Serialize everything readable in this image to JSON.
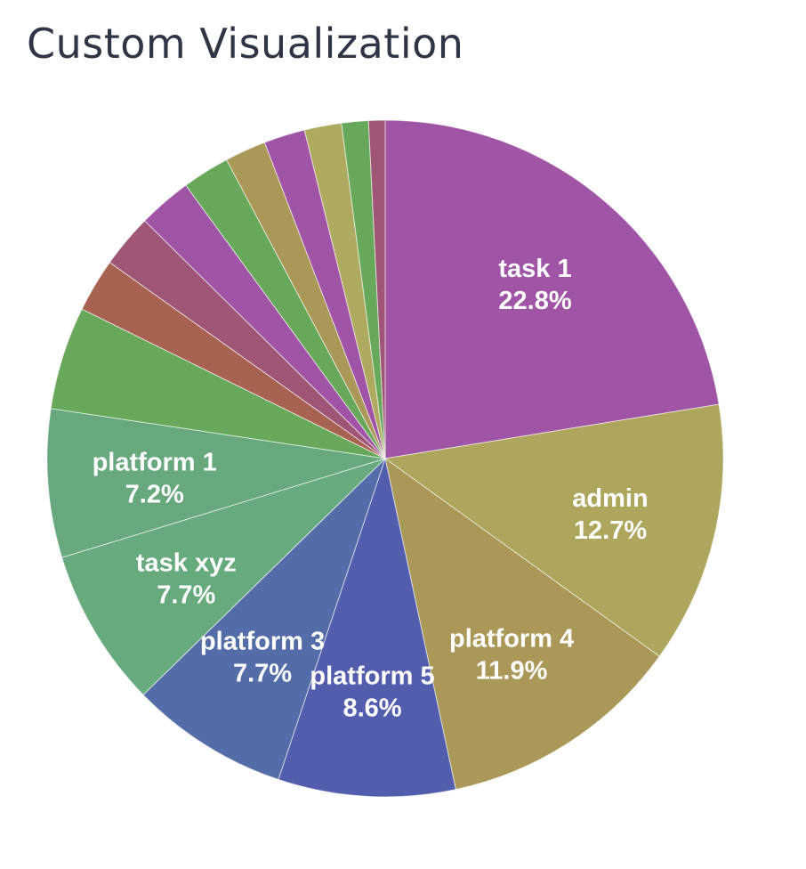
{
  "page": {
    "title": "Custom Visualization"
  },
  "chart_data": {
    "type": "pie",
    "title": "Custom Visualization",
    "start_angle_deg": 0,
    "direction": "clockwise",
    "slices": [
      {
        "label": "task 1",
        "pct_label": "22.8%",
        "value": 22.8,
        "color": "#a054a5",
        "show_label": true
      },
      {
        "label": "admin",
        "pct_label": "12.7%",
        "value": 12.7,
        "color": "#aea65c",
        "show_label": true
      },
      {
        "label": "platform 4",
        "pct_label": "11.9%",
        "value": 11.9,
        "color": "#aa9858",
        "show_label": true
      },
      {
        "label": "platform 5",
        "pct_label": "8.6%",
        "value": 8.6,
        "color": "#525ead",
        "show_label": true
      },
      {
        "label": "platform 3",
        "pct_label": "7.7%",
        "value": 7.7,
        "color": "#546ca8",
        "show_label": true
      },
      {
        "label": "task xyz",
        "pct_label": "7.7%",
        "value": 7.7,
        "color": "#67aa7e",
        "show_label": true
      },
      {
        "label": "platform 1",
        "pct_label": "7.2%",
        "value": 7.2,
        "color": "#68a87f",
        "show_label": true
      },
      {
        "label": "",
        "pct_label": "",
        "value": 5.0,
        "color": "#68a85a",
        "show_label": false
      },
      {
        "label": "",
        "pct_label": "",
        "value": 2.6,
        "color": "#a76252",
        "show_label": false
      },
      {
        "label": "",
        "pct_label": "",
        "value": 2.6,
        "color": "#9e5576",
        "show_label": false
      },
      {
        "label": "",
        "pct_label": "",
        "value": 2.6,
        "color": "#a054a5",
        "show_label": false
      },
      {
        "label": "",
        "pct_label": "",
        "value": 2.3,
        "color": "#68a85a",
        "show_label": false
      },
      {
        "label": "",
        "pct_label": "",
        "value": 2.0,
        "color": "#aa9858",
        "show_label": false
      },
      {
        "label": "",
        "pct_label": "",
        "value": 2.0,
        "color": "#a054a5",
        "show_label": false
      },
      {
        "label": "",
        "pct_label": "",
        "value": 1.8,
        "color": "#aeaa60",
        "show_label": false
      },
      {
        "label": "",
        "pct_label": "",
        "value": 1.3,
        "color": "#68a85a",
        "show_label": false
      },
      {
        "label": "",
        "pct_label": "",
        "value": 0.8,
        "color": "#9e5576",
        "show_label": false
      }
    ]
  }
}
